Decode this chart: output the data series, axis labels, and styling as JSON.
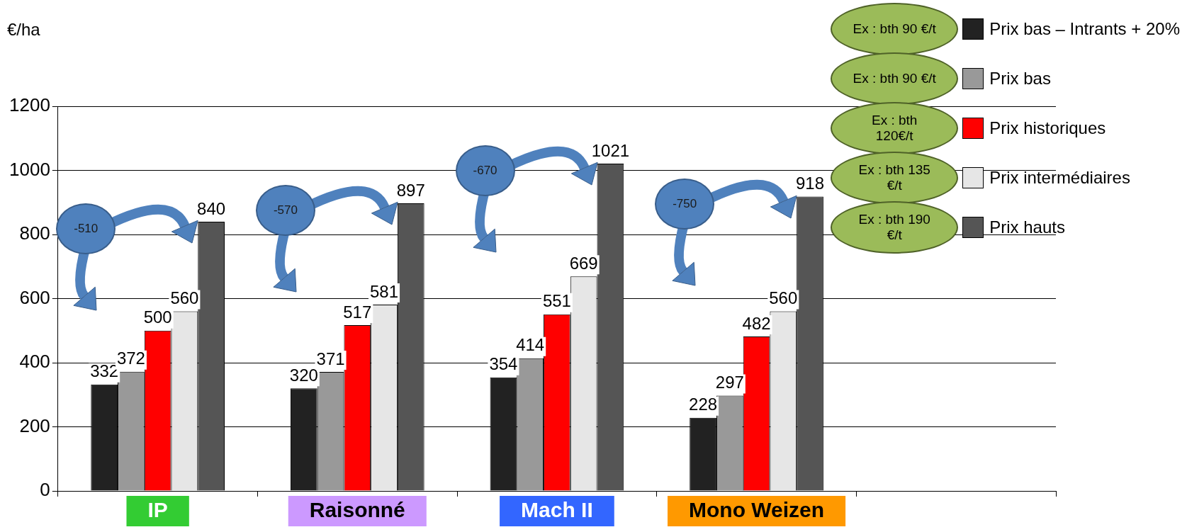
{
  "chart_data": {
    "type": "bar",
    "ylabel": "€/ha",
    "categories": [
      "IP",
      "Raisonné",
      "Mach II",
      "Mono Weizen",
      null
    ],
    "series": [
      {
        "name": "Prix bas – Intrants + 20%",
        "color": "#222222",
        "values": [
          332,
          320,
          354,
          228,
          null
        ]
      },
      {
        "name": "Prix bas",
        "color": "#999999",
        "values": [
          372,
          371,
          414,
          297,
          null
        ]
      },
      {
        "name": "Prix historiques",
        "color": "#ff0000",
        "values": [
          500,
          517,
          551,
          482,
          null
        ]
      },
      {
        "name": "Prix intermédiaires",
        "color": "#e6e6e6",
        "values": [
          560,
          581,
          669,
          560,
          null
        ]
      },
      {
        "name": "Prix hauts",
        "color": "#555555",
        "values": [
          840,
          897,
          1021,
          918,
          null
        ]
      }
    ],
    "ylim": [
      0,
      1200
    ],
    "yticks": [
      0,
      200,
      400,
      600,
      800,
      1000,
      1200
    ],
    "grid": "y",
    "legend": "top right",
    "data_labels": true,
    "annotations": [
      "-510",
      "-570",
      "-670",
      "-750",
      "Ex : bth 90 €/t",
      "Ex : bth 90 €/t",
      "Ex : bth 120€/t",
      "Ex : bth 135 €/t",
      "Ex : bth 190 €/t"
    ]
  }
}
